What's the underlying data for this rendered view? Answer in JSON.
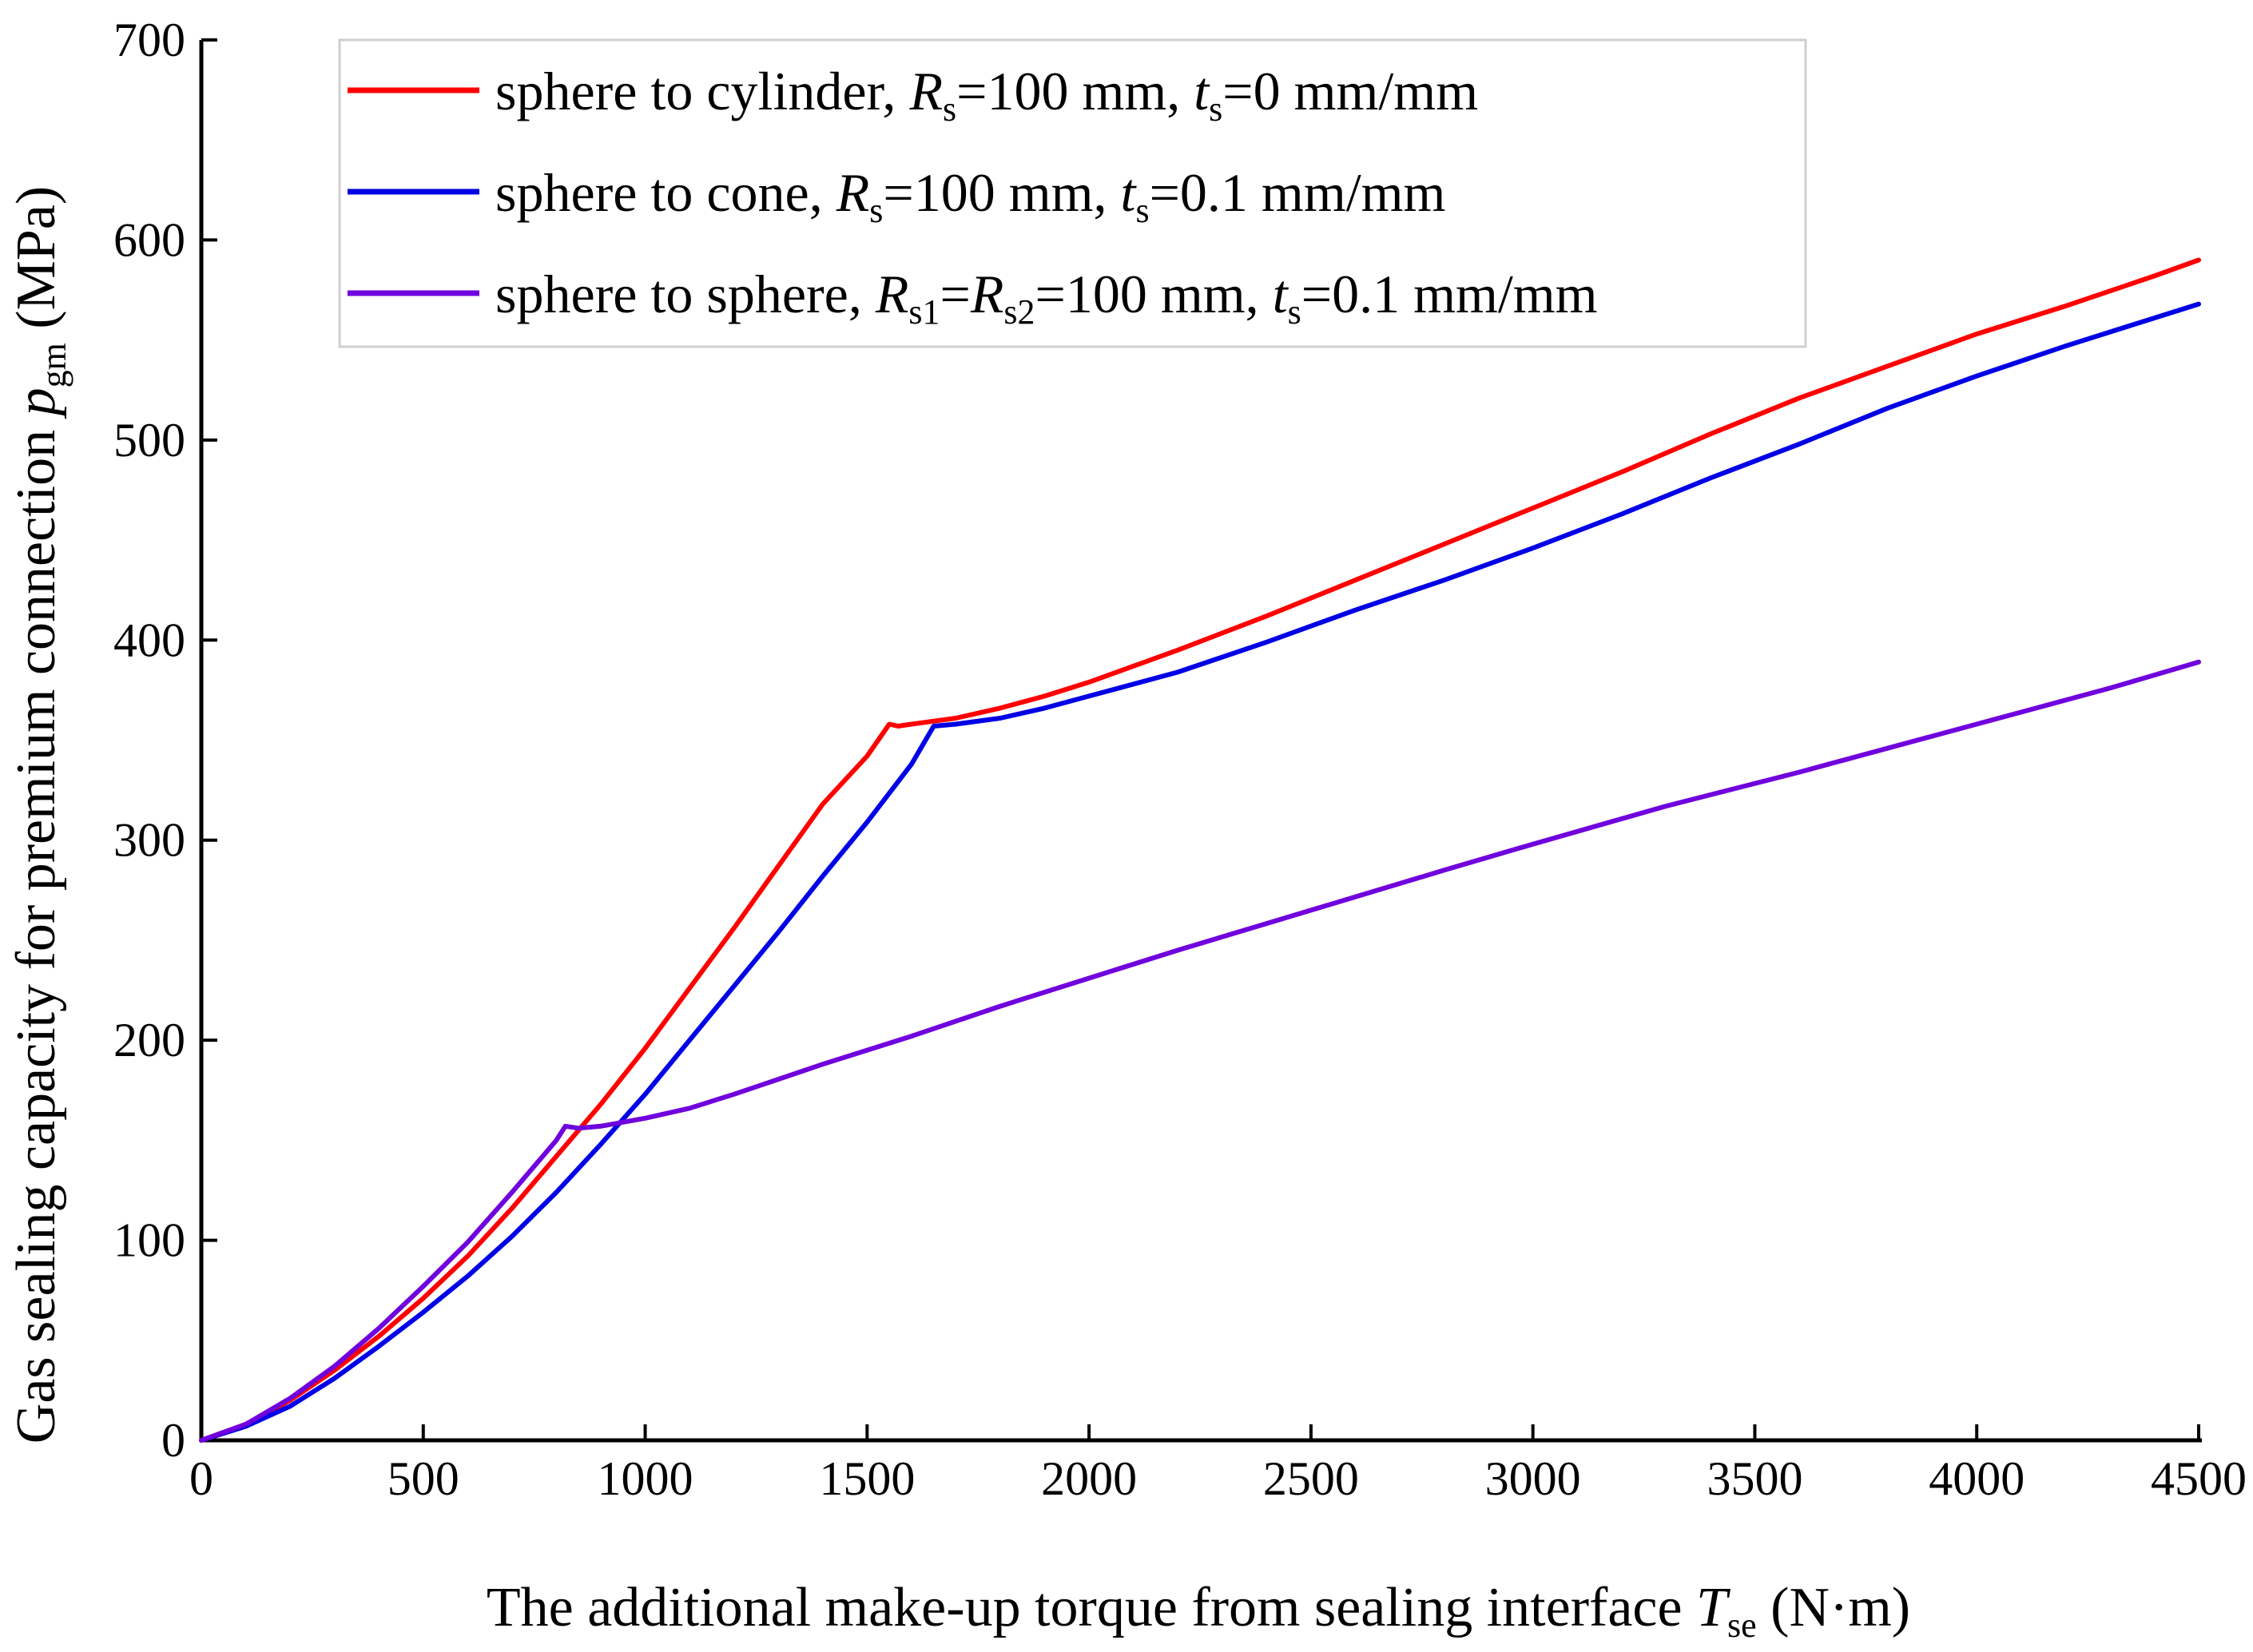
{
  "chart_data": {
    "type": "line",
    "title": "",
    "xlim": [
      0,
      4500
    ],
    "ylim": [
      0,
      700
    ],
    "xticks": [
      0,
      500,
      1000,
      1500,
      2000,
      2500,
      3000,
      3500,
      4000,
      4500
    ],
    "yticks": [
      0,
      100,
      200,
      300,
      400,
      500,
      600,
      700
    ],
    "xlabel": {
      "text": "The additional make-up torque  from sealing interface ",
      "symbol": "T",
      "subscript": "se",
      "unit": " (N·m)"
    },
    "ylabel": {
      "text": "Gas sealing capacity for premium connection ",
      "symbol": "p",
      "subscript": "gm",
      "unit": " (MPa)"
    },
    "legend_position": "top-left",
    "series": [
      {
        "name": "sphere to cylinder, Rs=100 mm, ts=0 mm/mm",
        "legend_parts": {
          "prefix": "sphere to cylinder, ",
          "p1_sym": "R",
          "p1_sub": "s",
          "p1_val": "=100 mm, ",
          "p2_sym": "t",
          "p2_sub": "s",
          "p2_val": "=0 mm/mm"
        },
        "color": "#ff0000",
        "x": [
          0,
          100,
          200,
          300,
          400,
          500,
          600,
          700,
          800,
          900,
          1000,
          1100,
          1200,
          1300,
          1400,
          1500,
          1550,
          1570,
          1600,
          1700,
          1800,
          1900,
          2000,
          2200,
          2400,
          2600,
          2800,
          3000,
          3200,
          3400,
          3600,
          3800,
          4000,
          4200,
          4400,
          4500
        ],
        "y": [
          0,
          8,
          20,
          35,
          52,
          71,
          92,
          116,
          142,
          168,
          196,
          226,
          256,
          287,
          318,
          342,
          358,
          357,
          358,
          361,
          366,
          372,
          379,
          395,
          412,
          430,
          448,
          466,
          484,
          503,
          521,
          537,
          553,
          567,
          582,
          590
        ]
      },
      {
        "name": "sphere to cone, Rs=100 mm, ts=0.1 mm/mm",
        "legend_parts": {
          "prefix": "sphere to cone, ",
          "p1_sym": "R",
          "p1_sub": "s",
          "p1_val": "=100 mm, ",
          "p2_sym": "t",
          "p2_sub": "s",
          "p2_val": "=0.1 mm/mm"
        },
        "color": "#0000e6",
        "x": [
          0,
          100,
          200,
          300,
          400,
          500,
          600,
          700,
          800,
          900,
          1000,
          1100,
          1200,
          1300,
          1400,
          1500,
          1600,
          1650,
          1700,
          1800,
          1900,
          2000,
          2200,
          2400,
          2600,
          2800,
          3000,
          3200,
          3400,
          3600,
          3800,
          4000,
          4200,
          4400,
          4500
        ],
        "y": [
          0,
          7,
          17,
          31,
          47,
          64,
          82,
          102,
          124,
          148,
          173,
          200,
          227,
          254,
          282,
          309,
          338,
          357,
          358,
          361,
          366,
          372,
          384,
          399,
          415,
          430,
          446,
          463,
          481,
          498,
          516,
          532,
          547,
          561,
          568
        ]
      },
      {
        "name": "sphere to sphere, Rs1=Rs2=100 mm, ts=0.1 mm/mm",
        "legend_parts": {
          "prefix": "sphere to sphere, ",
          "p1_sym": "R",
          "p1_sub": "s1",
          "p1_mid": "=",
          "p1b_sym": "R",
          "p1b_sub": "s2",
          "p1_val": "=100 mm, ",
          "p2_sym": "t",
          "p2_sub": "s",
          "p2_val": "=0.1 mm/mm"
        },
        "color": "#7000dd",
        "x": [
          0,
          100,
          200,
          300,
          400,
          500,
          600,
          700,
          800,
          820,
          850,
          900,
          1000,
          1100,
          1200,
          1400,
          1600,
          1800,
          2000,
          2200,
          2500,
          2800,
          3000,
          3300,
          3600,
          4000,
          4300,
          4500
        ],
        "y": [
          0,
          8,
          21,
          37,
          56,
          77,
          99,
          124,
          150,
          157,
          156,
          157,
          161,
          166,
          173,
          188,
          202,
          217,
          231,
          245,
          265,
          285,
          298,
          317,
          334,
          358,
          376,
          389
        ]
      }
    ]
  }
}
